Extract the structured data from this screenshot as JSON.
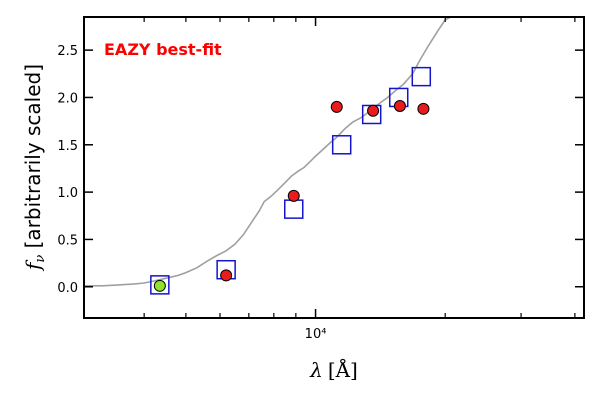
{
  "chart_data": {
    "type": "scatter",
    "annotation": {
      "text": "EAZY best-fit",
      "color": "#ff0000"
    },
    "xlabel": "λ [Å]",
    "ylabel": "fν [arbitrarily scaled]",
    "ylabel_symbol": "f",
    "ylabel_subscript": "ν",
    "ylabel_text": " [arbitrarily scaled]",
    "xlabel_symbol": "λ",
    "xlabel_unit": "[Å]",
    "x_scale": "log",
    "xlim": [
      2900,
      42000
    ],
    "ylim": [
      -0.33,
      2.85
    ],
    "y_ticks": [
      0.0,
      0.5,
      1.0,
      1.5,
      2.0,
      2.5
    ],
    "y_tick_labels": [
      "0.0",
      "0.5",
      "1.0",
      "1.5",
      "2.0",
      "2.5"
    ],
    "x_major_ticks": [
      10000
    ],
    "x_major_tick_labels": [
      "10⁴"
    ],
    "x_minor_ticks": [
      4000,
      5000,
      6000,
      7000,
      8000,
      9000,
      20000,
      30000,
      40000
    ],
    "grid": false,
    "series": [
      {
        "style": "line",
        "color": "#a0a0a0",
        "x": [
          2900,
          3200,
          3500,
          3800,
          4000,
          4200,
          4500,
          4800,
          5000,
          5300,
          5600,
          5900,
          6200,
          6500,
          6800,
          7100,
          7400,
          7600,
          7900,
          8200,
          8500,
          8800,
          9100,
          9400,
          9700,
          10000,
          10400,
          10800,
          11200,
          11700,
          12200,
          12800,
          13400,
          14000,
          14700,
          15400,
          16000,
          16800,
          17500,
          18300,
          19200,
          20000,
          21000
        ],
        "y": [
          0.01,
          0.01,
          0.02,
          0.03,
          0.04,
          0.06,
          0.09,
          0.12,
          0.15,
          0.2,
          0.27,
          0.33,
          0.38,
          0.45,
          0.55,
          0.68,
          0.8,
          0.9,
          0.96,
          1.03,
          1.1,
          1.17,
          1.22,
          1.26,
          1.32,
          1.38,
          1.45,
          1.52,
          1.58,
          1.67,
          1.74,
          1.79,
          1.86,
          1.93,
          2.0,
          2.08,
          2.14,
          2.25,
          2.4,
          2.55,
          2.7,
          2.82,
          2.87
        ]
      },
      {
        "style": "square",
        "color": "#1414cc",
        "x": [
          4350,
          6200,
          8900,
          11500,
          13500,
          15600,
          17600
        ],
        "y": [
          0.02,
          0.18,
          0.82,
          1.5,
          1.82,
          2.0,
          2.22
        ]
      },
      {
        "style": "circle",
        "color": "#e81c1c",
        "x": [
          6200,
          8900,
          11200,
          13600,
          15700,
          17800
        ],
        "y": [
          0.12,
          0.96,
          1.9,
          1.86,
          1.91,
          1.88
        ]
      },
      {
        "style": "circle",
        "color": "#8fe32c",
        "x": [
          4350
        ],
        "y": [
          0.01
        ]
      }
    ]
  }
}
